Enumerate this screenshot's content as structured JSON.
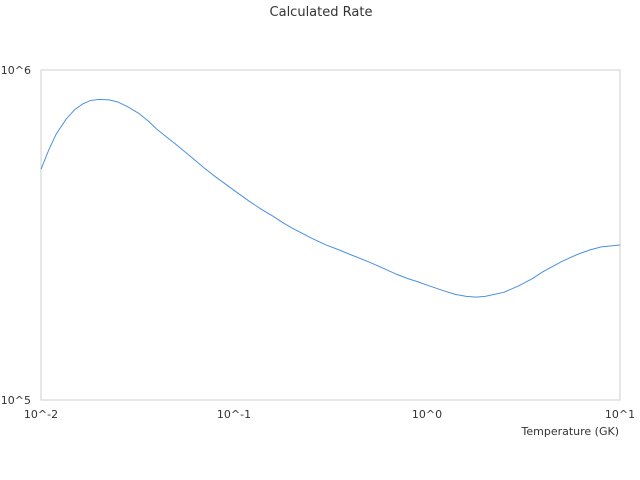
{
  "chart_data": {
    "type": "line",
    "title": "Calculated Rate",
    "xlabel": "Temperature (GK)",
    "ylabel": "",
    "x_scale": "log",
    "y_scale": "log",
    "xlim": [
      0.01,
      10
    ],
    "ylim": [
      100000,
      1000000
    ],
    "x_tick_labels": [
      "10^-2",
      "10^-1",
      "10^0",
      "10^1"
    ],
    "y_tick_labels": [
      "10^5",
      "10^6"
    ],
    "grid": false,
    "legend": "none",
    "line_color": "#4a90e2",
    "series": [
      {
        "x": [
          0.01,
          0.011,
          0.012,
          0.0135,
          0.015,
          0.0165,
          0.018,
          0.02,
          0.0225,
          0.025,
          0.028,
          0.032,
          0.036,
          0.04,
          0.045,
          0.05,
          0.06,
          0.07,
          0.08,
          0.09,
          0.1,
          0.12,
          0.14,
          0.16,
          0.18,
          0.2,
          0.25,
          0.3,
          0.35,
          0.4,
          0.5,
          0.6,
          0.7,
          0.8,
          0.9,
          1.0,
          1.2,
          1.4,
          1.6,
          1.8,
          2.0,
          2.5,
          3.0,
          3.5,
          4.0,
          5.0,
          6.0,
          7.0,
          8.0,
          9.0,
          10.0
        ],
        "y": [
          500000,
          575000,
          640000,
          710000,
          760000,
          790000,
          808000,
          815000,
          812000,
          800000,
          775000,
          740000,
          700000,
          660000,
          625000,
          595000,
          545000,
          505000,
          475000,
          452000,
          432000,
          400000,
          377000,
          360000,
          344000,
          332000,
          310000,
          295000,
          285000,
          276000,
          262000,
          250000,
          240000,
          233000,
          228000,
          223000,
          215000,
          209000,
          206000,
          205000,
          206000,
          212000,
          222000,
          233000,
          245000,
          263000,
          276000,
          285000,
          291000,
          293000,
          295000
        ]
      }
    ]
  }
}
